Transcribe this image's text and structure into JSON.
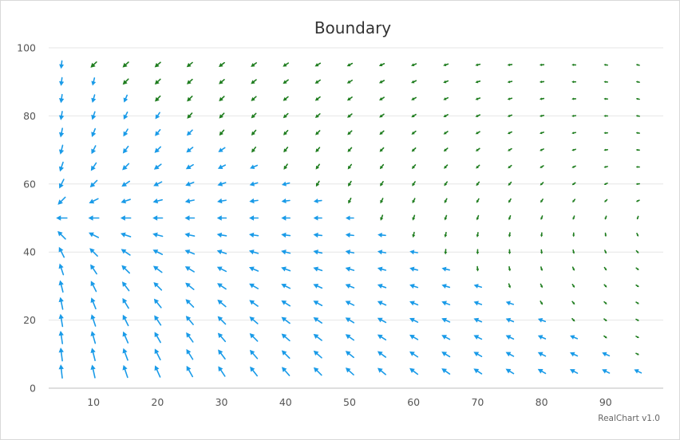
{
  "chart_data": {
    "type": "vector",
    "title": "Boundary",
    "credit": "RealChart v1.0",
    "xlim": [
      3,
      99
    ],
    "ylim": [
      0,
      100
    ],
    "x_ticks": [
      10,
      20,
      30,
      40,
      50,
      60,
      70,
      80,
      90
    ],
    "y_ticks": [
      0,
      20,
      40,
      60,
      80,
      100
    ],
    "grid": {
      "horizontal": true,
      "vertical": false
    },
    "x": [
      5,
      10,
      15,
      20,
      25,
      30,
      35,
      40,
      45,
      50,
      55,
      60,
      65,
      70,
      75,
      80,
      85,
      90,
      95
    ],
    "y": [
      5,
      10,
      15,
      20,
      25,
      30,
      35,
      40,
      45,
      50,
      55,
      60,
      65,
      70,
      75,
      80,
      85,
      90,
      95
    ],
    "field": {
      "boundary": "x + y > 100",
      "series": [
        {
          "region": "x + y <= 100",
          "color": "#1a9be8"
        },
        {
          "region": "x + y > 100",
          "color": "#1f7d1f"
        }
      ]
    }
  }
}
